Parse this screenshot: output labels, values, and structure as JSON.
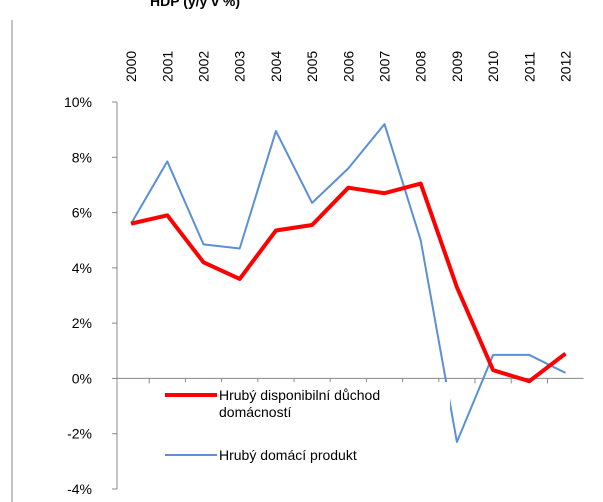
{
  "chart_data": {
    "type": "line",
    "title": "HDP (y/y v %)",
    "categories": [
      "2000",
      "2001",
      "2002",
      "2003",
      "2004",
      "2005",
      "2006",
      "2007",
      "2008",
      "2009",
      "2010",
      "2011",
      "2012"
    ],
    "series": [
      {
        "name": "Hrubý disponibilní důchod domácností",
        "color": "#ff0000",
        "values": [
          5.6,
          5.9,
          4.2,
          3.6,
          5.35,
          5.55,
          6.9,
          6.7,
          7.05,
          3.3,
          0.3,
          -0.1,
          0.9
        ]
      },
      {
        "name": "Hrubý domácí produkt",
        "color": "#5b8fd6",
        "values": [
          5.6,
          7.85,
          4.85,
          4.7,
          8.95,
          6.35,
          7.6,
          9.2,
          5.0,
          -2.3,
          0.85,
          0.85,
          0.2
        ]
      }
    ],
    "ylim": [
      -4,
      10
    ],
    "yticks": [
      {
        "value": -4,
        "label": "-4%"
      },
      {
        "value": -2,
        "label": "-2%"
      },
      {
        "value": 0,
        "label": "0%"
      },
      {
        "value": 2,
        "label": "2%"
      },
      {
        "value": 4,
        "label": "4%"
      },
      {
        "value": 6,
        "label": "6%"
      },
      {
        "value": 8,
        "label": "8%"
      },
      {
        "value": 10,
        "label": "10%"
      }
    ],
    "grid": false,
    "legend": "lower-left"
  }
}
